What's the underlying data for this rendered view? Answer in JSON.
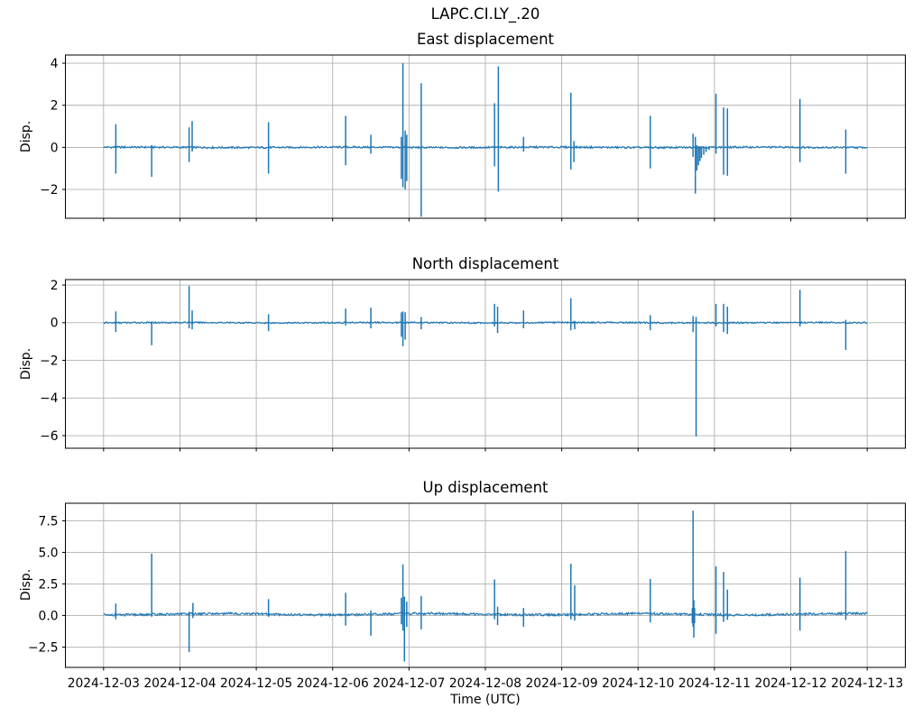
{
  "figure": {
    "suptitle": "LAPC.CI.LY_.20",
    "background_color": "#ffffff",
    "text_color": "#000000",
    "line_color": "#1f77b4",
    "grid_color": "#b0b0b0",
    "spine_color": "#000000"
  },
  "x_axis": {
    "label": "Time (UTC)",
    "tick_values": [
      3,
      4,
      5,
      6,
      7,
      8,
      9,
      10,
      11,
      12,
      13
    ],
    "tick_labels": [
      "2024-12-03",
      "2024-12-04",
      "2024-12-05",
      "2024-12-06",
      "2024-12-07",
      "2024-12-08",
      "2024-12-09",
      "2024-12-10",
      "2024-12-11",
      "2024-12-12",
      "2024-12-13"
    ]
  },
  "chart_data": [
    {
      "type": "line",
      "title": "East displacement",
      "ylabel": "Disp.",
      "xlabel": "",
      "grid": true,
      "legend": "none",
      "x_unit": "day of December 2024 (UTC)",
      "xlim": [
        2.5,
        13.5
      ],
      "ylim": [
        -3.37,
        4.39
      ],
      "yticks": [
        {
          "value": -2,
          "label": "−2"
        },
        {
          "value": 0,
          "label": "0"
        },
        {
          "value": 2,
          "label": "2"
        },
        {
          "value": 4,
          "label": "4"
        }
      ],
      "data_start": 3.0,
      "data_end": 13.0,
      "baseline": 0.0,
      "baseline_noise": 0.045,
      "baseline_wobble": 0.01,
      "spikes": [
        [
          3.16,
          1.1,
          -1.25
        ],
        [
          3.63,
          0.1,
          -1.4
        ],
        [
          4.12,
          0.95,
          -0.7
        ],
        [
          4.16,
          1.25,
          -0.2
        ],
        [
          5.16,
          1.2,
          -1.25
        ],
        [
          6.17,
          1.5,
          -0.85
        ],
        [
          6.5,
          0.6,
          -0.3
        ],
        [
          6.9,
          0.5,
          -1.5
        ],
        [
          6.92,
          4.0,
          -1.9
        ],
        [
          6.95,
          0.8,
          -2.0
        ],
        [
          6.97,
          0.6,
          -1.6
        ],
        [
          7.16,
          3.05,
          -3.3
        ],
        [
          8.12,
          2.1,
          -0.9
        ],
        [
          8.17,
          3.85,
          -2.1
        ],
        [
          8.5,
          0.5,
          -0.2
        ],
        [
          9.12,
          2.6,
          -1.05
        ],
        [
          9.16,
          0.3,
          -0.7
        ],
        [
          10.16,
          1.5,
          -1.0
        ],
        [
          10.72,
          0.65,
          -0.45
        ],
        [
          10.75,
          0.5,
          -2.2
        ],
        [
          10.77,
          0.1,
          -1.1
        ],
        [
          10.79,
          0.05,
          -0.85
        ],
        [
          10.81,
          0.05,
          -0.65
        ],
        [
          10.83,
          0.05,
          -0.5
        ],
        [
          10.86,
          0.05,
          -0.35
        ],
        [
          10.89,
          0.05,
          -0.22
        ],
        [
          10.93,
          0.05,
          -0.12
        ],
        [
          11.02,
          2.55,
          -0.3
        ],
        [
          11.12,
          1.9,
          -1.3
        ],
        [
          11.17,
          1.85,
          -1.35
        ],
        [
          12.12,
          2.3,
          -0.7
        ],
        [
          12.72,
          0.85,
          -1.25
        ]
      ]
    },
    {
      "type": "line",
      "title": "North displacement",
      "ylabel": "Disp.",
      "xlabel": "",
      "grid": true,
      "legend": "none",
      "x_unit": "day of December 2024 (UTC)",
      "xlim": [
        2.5,
        13.5
      ],
      "ylim": [
        -6.67,
        2.29
      ],
      "yticks": [
        {
          "value": -6,
          "label": "−6"
        },
        {
          "value": -4,
          "label": "−4"
        },
        {
          "value": -2,
          "label": "−2"
        },
        {
          "value": 0,
          "label": "0"
        },
        {
          "value": 2,
          "label": "2"
        }
      ],
      "data_start": 3.0,
      "data_end": 13.0,
      "baseline": 0.0,
      "baseline_noise": 0.04,
      "baseline_wobble": 0.01,
      "spikes": [
        [
          3.16,
          0.6,
          -0.5
        ],
        [
          3.63,
          0.05,
          -1.2
        ],
        [
          4.12,
          1.95,
          -0.3
        ],
        [
          4.16,
          0.65,
          -0.35
        ],
        [
          5.16,
          0.45,
          -0.45
        ],
        [
          6.17,
          0.75,
          -0.15
        ],
        [
          6.5,
          0.8,
          -0.3
        ],
        [
          6.9,
          0.55,
          -0.75
        ],
        [
          6.92,
          0.6,
          -1.25
        ],
        [
          6.95,
          0.55,
          -0.9
        ],
        [
          7.16,
          0.3,
          -0.35
        ],
        [
          8.12,
          1.0,
          -0.2
        ],
        [
          8.16,
          0.85,
          -0.55
        ],
        [
          8.5,
          0.65,
          -0.3
        ],
        [
          9.12,
          1.3,
          -0.4
        ],
        [
          9.17,
          0.1,
          -0.35
        ],
        [
          10.16,
          0.4,
          -0.4
        ],
        [
          10.72,
          0.35,
          -0.5
        ],
        [
          10.76,
          0.3,
          -6.05
        ],
        [
          11.02,
          1.0,
          -0.2
        ],
        [
          11.12,
          1.0,
          -0.5
        ],
        [
          11.17,
          0.85,
          -0.6
        ],
        [
          12.12,
          1.75,
          -0.2
        ],
        [
          12.72,
          0.15,
          -1.45
        ]
      ]
    },
    {
      "type": "line",
      "title": "Up displacement",
      "ylabel": "Disp.",
      "xlabel": "Time (UTC)",
      "grid": true,
      "legend": "none",
      "x_unit": "day of December 2024 (UTC)",
      "xlim": [
        2.5,
        13.5
      ],
      "ylim": [
        -4.11,
        8.89
      ],
      "yticks": [
        {
          "value": -2.5,
          "label": "−2.5"
        },
        {
          "value": 0.0,
          "label": "0.0"
        },
        {
          "value": 2.5,
          "label": "2.5"
        },
        {
          "value": 5.0,
          "label": "5.0"
        },
        {
          "value": 7.5,
          "label": "7.5"
        }
      ],
      "data_start": 3.0,
      "data_end": 13.0,
      "baseline": 0.1,
      "baseline_noise": 0.09,
      "baseline_wobble": 0.05,
      "spikes": [
        [
          3.16,
          0.95,
          -0.3
        ],
        [
          3.63,
          4.9,
          -0.1
        ],
        [
          4.12,
          0.3,
          -2.9
        ],
        [
          4.17,
          1.0,
          -0.2
        ],
        [
          5.16,
          1.3,
          -0.1
        ],
        [
          6.17,
          1.8,
          -0.8
        ],
        [
          6.5,
          0.4,
          -1.6
        ],
        [
          6.9,
          1.4,
          -0.7
        ],
        [
          6.92,
          4.05,
          -1.2
        ],
        [
          6.94,
          1.5,
          -3.65
        ],
        [
          6.97,
          1.1,
          -0.9
        ],
        [
          7.16,
          1.55,
          -1.1
        ],
        [
          8.12,
          2.85,
          -0.3
        ],
        [
          8.16,
          0.7,
          -0.75
        ],
        [
          8.5,
          0.6,
          -0.9
        ],
        [
          9.12,
          4.1,
          -0.3
        ],
        [
          9.17,
          2.4,
          -0.4
        ],
        [
          10.16,
          2.9,
          -0.55
        ],
        [
          10.71,
          0.6,
          -0.6
        ],
        [
          10.72,
          8.3,
          -0.9
        ],
        [
          10.73,
          1.2,
          -1.75
        ],
        [
          10.74,
          0.6,
          -0.6
        ],
        [
          11.02,
          3.9,
          -1.45
        ],
        [
          11.12,
          3.45,
          -0.5
        ],
        [
          11.17,
          2.05,
          -0.35
        ],
        [
          12.12,
          3.0,
          -1.2
        ],
        [
          12.72,
          5.1,
          -0.35
        ]
      ]
    }
  ]
}
